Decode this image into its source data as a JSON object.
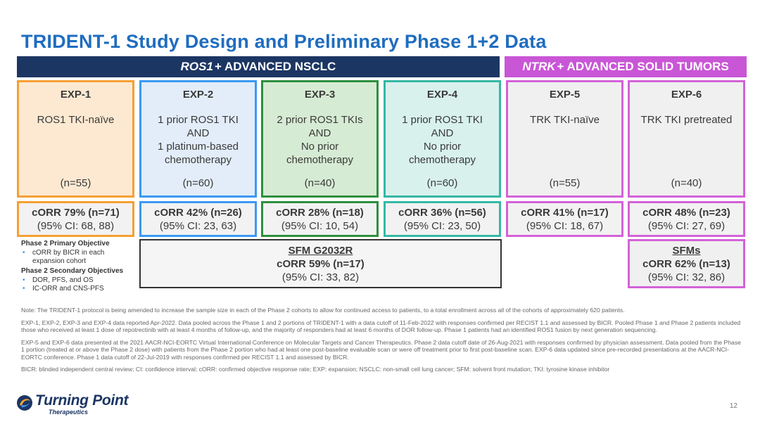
{
  "title": "TRIDENT-1 Study Design and Preliminary Phase 1+2 Data",
  "bands": {
    "ros": {
      "gene": "ROS1",
      "rest": "+ ADVANCED NSCLC"
    },
    "ntrk": {
      "gene": "NTRK",
      "rest": "+ ADVANCED SOLID TUMORS"
    }
  },
  "cohorts": [
    {
      "head": "EXP-1",
      "desc": [
        "ROS1 TKI-naïve"
      ],
      "n": "(n=55)",
      "orr": "cORR 79% (n=71)",
      "ci": "(95% CI: 68, 88)"
    },
    {
      "head": "EXP-2",
      "desc": [
        "1 prior ROS1 TKI",
        "AND",
        "1 platinum-based",
        "chemotherapy"
      ],
      "n": "(n=60)",
      "orr": "cORR 42% (n=26)",
      "ci": "(95% CI: 23, 63)"
    },
    {
      "head": "EXP-3",
      "desc": [
        "2 prior ROS1 TKIs",
        "AND",
        "No prior",
        "chemotherapy"
      ],
      "n": "(n=40)",
      "orr": "cORR 28% (n=18)",
      "ci": "(95% CI: 10, 54)"
    },
    {
      "head": "EXP-4",
      "desc": [
        "1 prior ROS1 TKI",
        "AND",
        "No prior",
        "chemotherapy"
      ],
      "n": "(n=60)",
      "orr": "cORR 36% (n=56)",
      "ci": "(95% CI: 23, 50)"
    },
    {
      "head": "EXP-5",
      "desc": [
        "TRK TKI-naïve"
      ],
      "n": "(n=55)",
      "orr": "cORR 41% (n=17)",
      "ci": "(95% CI: 18, 67)"
    },
    {
      "head": "EXP-6",
      "desc": [
        "TRK TKI pretreated"
      ],
      "n": "(n=40)",
      "orr": "cORR 48% (n=23)",
      "ci": "(95% CI: 27, 69)"
    }
  ],
  "objectives": {
    "primary_head": "Phase 2 Primary Objective",
    "primary_items": [
      "cORR by BICR in each expansion cohort"
    ],
    "secondary_head": "Phase 2 Secondary Objectives",
    "secondary_items": [
      "DOR, PFS, and OS",
      "IC-ORR and CNS-PFS"
    ]
  },
  "sfm_g2032r": {
    "title": "SFM G2032R",
    "orr": "cORR 59% (n=17)",
    "ci": "(95% CI: 33, 82)"
  },
  "sfms": {
    "title": "SFMs",
    "orr": "cORR 62% (n=13)",
    "ci": "(95% CI: 32, 86)"
  },
  "notes": [
    "Note: The TRIDENT-1 protocol is being amended to increase the sample size in each of the Phase 2 cohorts to allow for continued access to patients, to a total enrollment across all of the cohorts of approximately 620 patients.",
    "EXP-1, EXP-2, EXP-3 and EXP-4 data reported Apr-2022. Data pooled across the Phase 1 and 2 portions of TRIDENT-1 with a data cutoff of 11-Feb-2022 with responses confirmed per RECIST 1.1 and assessed by BICR. Pooled Phase 1 and Phase 2 patients included those who received at least 1 dose of repotrectinib with at least 4 months of follow-up, and the majority of responders had at least 6 months of DOR follow-up. Phase 1 patients had an identified ROS1 fusion by next generation sequencing.",
    "EXP-5 and EXP-6 data presented at the 2021 AACR-NCI-EORTC Virtual International Conference on Molecular Targets and Cancer Therapeutics. Phase 2 data cutoff date of 26-Aug-2021 with responses confirmed by physician assessment. Data pooled from the Phase 1 portion (treated at or above the Phase 2 dose) with patients from the Phase 2 portion who had at least one post-baseline evaluable scan or were off treatment prior to first post-baseline scan. EXP-6 data updated since pre-recorded presentations at the AACR-NCI-EORTC conference. Phase 1 data cutoff of 22-Jul-2019 with responses confirmed per RECIST 1.1 and assessed by BICR.",
    "BICR: blinded independent central review; CI: confidence interval; cORR: confirmed objective response rate; EXP: expansion; NSCLC: non-small cell lung cancer; SFM: solvent front mutation; TKI: tyrosine kinase inhibitor"
  ],
  "logo": {
    "name": "Turning Point",
    "sub": "Therapeutics"
  },
  "page_number": "12",
  "colors": {
    "title": "#1f6dbf",
    "navy": "#1c3664",
    "magenta": "#c956d6",
    "orange": "#f5a033",
    "blue": "#3b99f2",
    "green": "#2e8f3e",
    "teal": "#35b8a4"
  }
}
